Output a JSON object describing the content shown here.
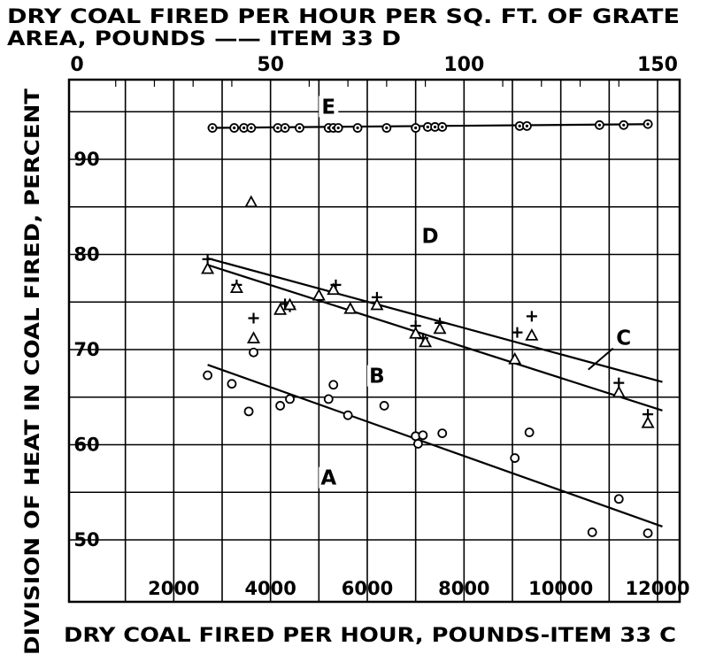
{
  "chart_data": {
    "type": "scatter",
    "title_top_line1": "DRY COAL FIRED PER HOUR PER SQ. FT. OF GRATE",
    "title_top_line2": "AREA, POUNDS —— ITEM 33 D",
    "xlabel": "DRY COAL FIRED PER HOUR, POUNDS-ITEM 33 C",
    "ylabel": "DIVISION OF HEAT IN COAL FIRED, PERCENT",
    "x_bottom": {
      "range": [
        0,
        12000
      ],
      "ticks": [
        2000,
        4000,
        6000,
        8000,
        10000,
        12000
      ],
      "tick_labels": [
        "2000",
        "4000",
        "6000",
        "8000",
        "10000",
        "12000"
      ]
    },
    "x_top": {
      "range": [
        0,
        150
      ],
      "ticks": [
        0,
        50,
        100,
        150
      ],
      "tick_labels": [
        "0",
        "50",
        "100",
        "150"
      ]
    },
    "y": {
      "range": [
        45,
        97
      ],
      "ticks": [
        50,
        60,
        70,
        80,
        90
      ],
      "tick_labels": [
        "50",
        "60",
        "70",
        "80",
        "90"
      ]
    },
    "grid": true,
    "region_labels": [
      {
        "text": "E",
        "x": 5200,
        "y": 94.8
      },
      {
        "text": "D",
        "x": 7300,
        "y": 81.2
      },
      {
        "text": "C",
        "x": 11300,
        "y": 70.5
      },
      {
        "text": "B",
        "x": 6200,
        "y": 66.5
      },
      {
        "text": "A",
        "x": 5200,
        "y": 55.8
      }
    ],
    "series": [
      {
        "marker": "circle-dot",
        "values": [
          [
            2800,
            93.3
          ],
          [
            3250,
            93.3
          ],
          [
            3450,
            93.3
          ],
          [
            3600,
            93.3
          ],
          [
            4150,
            93.3
          ],
          [
            4300,
            93.3
          ],
          [
            4600,
            93.3
          ],
          [
            5200,
            93.3
          ],
          [
            5300,
            93.3
          ],
          [
            5400,
            93.3
          ],
          [
            5800,
            93.3
          ],
          [
            6400,
            93.3
          ],
          [
            7000,
            93.3
          ],
          [
            7250,
            93.4
          ],
          [
            7400,
            93.4
          ],
          [
            7550,
            93.4
          ],
          [
            9150,
            93.5
          ],
          [
            9300,
            93.5
          ],
          [
            10800,
            93.6
          ],
          [
            11300,
            93.6
          ],
          [
            11800,
            93.7
          ]
        ],
        "fit_line": [
          [
            2700,
            93.3
          ],
          [
            11900,
            93.7
          ]
        ]
      },
      {
        "marker": "plus",
        "values": [
          [
            2700,
            79.5
          ],
          [
            3300,
            76.8
          ],
          [
            3650,
            73.3
          ],
          [
            4300,
            74.8
          ],
          [
            4400,
            74.5
          ],
          [
            5350,
            76.8
          ],
          [
            6200,
            75.5
          ],
          [
            7000,
            72.5
          ],
          [
            7150,
            71.2
          ],
          [
            7500,
            72.8
          ],
          [
            9100,
            71.8
          ],
          [
            9400,
            73.5
          ],
          [
            11200,
            66.5
          ],
          [
            11800,
            63.2
          ]
        ]
      },
      {
        "marker": "triangle",
        "values": [
          [
            2700,
            78.5
          ],
          [
            3300,
            76.5
          ],
          [
            3600,
            85.5
          ],
          [
            3650,
            71.2
          ],
          [
            4200,
            74.2
          ],
          [
            4400,
            74.7
          ],
          [
            5000,
            75.7
          ],
          [
            5300,
            76.3
          ],
          [
            5650,
            74.3
          ],
          [
            6200,
            74.7
          ],
          [
            7000,
            71.7
          ],
          [
            7200,
            70.8
          ],
          [
            7500,
            72.2
          ],
          [
            9050,
            69.0
          ],
          [
            9400,
            71.5
          ],
          [
            11200,
            65.5
          ],
          [
            11800,
            62.3
          ]
        ],
        "fit_lines": [
          {
            "from": [
              2700,
              79.6
            ],
            "to": [
              12100,
              66.6
            ]
          },
          {
            "from": [
              2700,
              78.9
            ],
            "to": [
              12100,
              63.6
            ]
          }
        ]
      },
      {
        "marker": "circle",
        "values": [
          [
            2700,
            67.3
          ],
          [
            3200,
            66.4
          ],
          [
            3550,
            63.5
          ],
          [
            3650,
            69.7
          ],
          [
            4200,
            64.1
          ],
          [
            4400,
            64.8
          ],
          [
            5200,
            64.8
          ],
          [
            5300,
            66.3
          ],
          [
            5600,
            63.1
          ],
          [
            6350,
            64.1
          ],
          [
            7000,
            60.9
          ],
          [
            7050,
            60.1
          ],
          [
            7150,
            61.0
          ],
          [
            7550,
            61.2
          ],
          [
            9050,
            58.6
          ],
          [
            9350,
            61.3
          ],
          [
            10650,
            50.8
          ],
          [
            11200,
            54.3
          ],
          [
            11800,
            50.7
          ]
        ],
        "fit_line": [
          [
            2700,
            68.4
          ],
          [
            12100,
            51.4
          ]
        ]
      }
    ]
  }
}
